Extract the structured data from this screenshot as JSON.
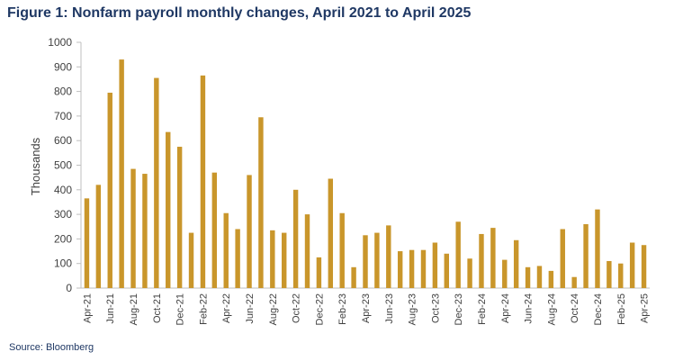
{
  "title": "Figure 1: Nonfarm payroll monthly changes, April 2021 to April 2025",
  "source": "Source: Bloomberg",
  "chart_data": {
    "type": "bar",
    "ylabel": "Thousands",
    "xlabel": "",
    "ylim": [
      0,
      1000
    ],
    "yticks": [
      0,
      100,
      200,
      300,
      400,
      500,
      600,
      700,
      800,
      900,
      1000
    ],
    "grid": false,
    "legend": "none",
    "bar_color": "#c9962b",
    "categories": [
      "Apr-21",
      "May-21",
      "Jun-21",
      "Jul-21",
      "Aug-21",
      "Sep-21",
      "Oct-21",
      "Nov-21",
      "Dec-21",
      "Jan-22",
      "Feb-22",
      "Mar-22",
      "Apr-22",
      "May-22",
      "Jun-22",
      "Jul-22",
      "Aug-22",
      "Sep-22",
      "Oct-22",
      "Nov-22",
      "Dec-22",
      "Jan-23",
      "Feb-23",
      "Mar-23",
      "Apr-23",
      "May-23",
      "Jun-23",
      "Jul-23",
      "Aug-23",
      "Sep-23",
      "Oct-23",
      "Nov-23",
      "Dec-23",
      "Jan-24",
      "Feb-24",
      "Mar-24",
      "Apr-24",
      "May-24",
      "Jun-24",
      "Jul-24",
      "Aug-24",
      "Sep-24",
      "Oct-24",
      "Nov-24",
      "Dec-24",
      "Jan-25",
      "Feb-25",
      "Mar-25",
      "Apr-25"
    ],
    "tick_labels": [
      "Apr-21",
      "",
      "Jun-21",
      "",
      "Aug-21",
      "",
      "Oct-21",
      "",
      "Dec-21",
      "",
      "Feb-22",
      "",
      "Apr-22",
      "",
      "Jun-22",
      "",
      "Aug-22",
      "",
      "Oct-22",
      "",
      "Dec-22",
      "",
      "Feb-23",
      "",
      "Apr-23",
      "",
      "Jun-23",
      "",
      "Aug-23",
      "",
      "Oct-23",
      "",
      "Dec-23",
      "",
      "Feb-24",
      "",
      "Apr-24",
      "",
      "Jun-24",
      "",
      "Aug-24",
      "",
      "Oct-24",
      "",
      "Dec-24",
      "",
      "Feb-25",
      "",
      "Apr-25"
    ],
    "values": [
      365,
      420,
      795,
      930,
      485,
      465,
      855,
      635,
      575,
      225,
      865,
      470,
      305,
      240,
      460,
      695,
      235,
      225,
      400,
      300,
      125,
      445,
      305,
      85,
      215,
      225,
      255,
      150,
      155,
      155,
      185,
      140,
      270,
      120,
      220,
      245,
      115,
      195,
      85,
      90,
      70,
      240,
      45,
      260,
      320,
      110,
      100,
      185,
      175
    ]
  }
}
